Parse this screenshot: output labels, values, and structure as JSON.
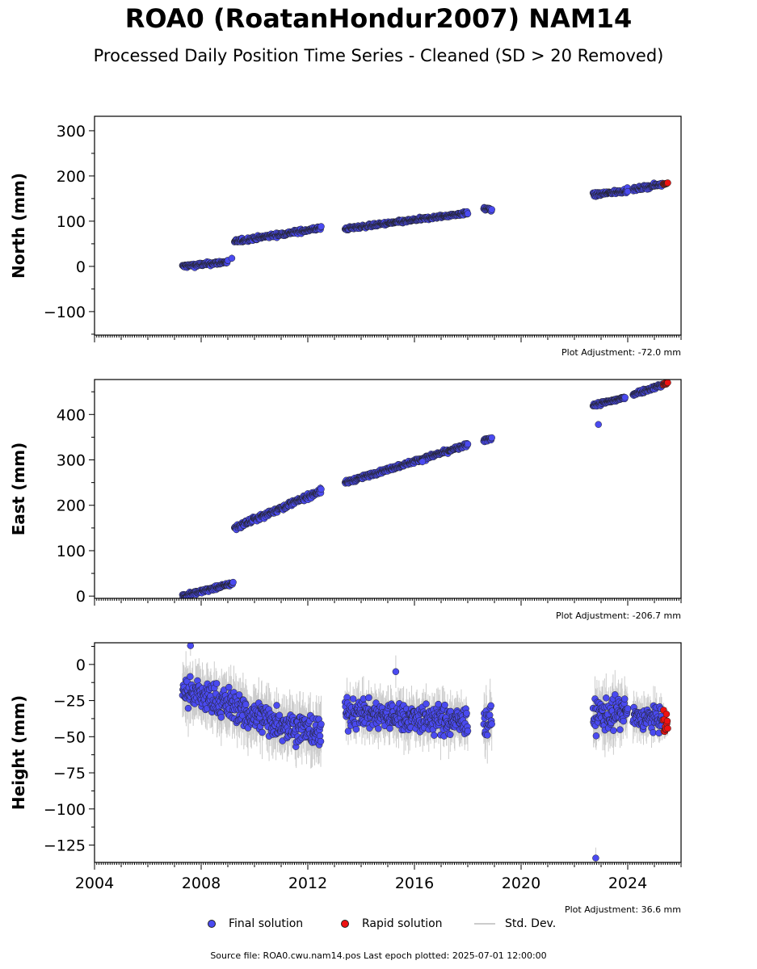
{
  "header": {
    "title": "ROA0 (RoatanHondur2007) NAM14",
    "subtitle": "Processed Daily Position Time Series - Cleaned (SD > 20 Removed)"
  },
  "legend": {
    "final": "Final solution",
    "rapid": "Rapid solution",
    "std": "Std. Dev."
  },
  "footer": {
    "source": "Source file: ROA0.cwu.nam14.pos  Last epoch plotted: 2025-07-01 12:00:00"
  },
  "colors": {
    "final": "#4a4af0",
    "rapid": "#ee1111",
    "std": "#cccccc",
    "edge": "#222222"
  },
  "chart_data": [
    {
      "type": "scatter",
      "ylabel": "North (mm)",
      "xlim": [
        2004.0,
        2026.0
      ],
      "ylim": [
        -152,
        332
      ],
      "yticks": [
        -100,
        0,
        100,
        200,
        300
      ],
      "ytick_labels": [
        "−100",
        "0",
        "100",
        "200",
        "300"
      ],
      "annotation": "Plot Adjustment: -72.0 mm",
      "grid": false,
      "final_segments": [
        {
          "x0": 2007.3,
          "x1": 2009.0,
          "y0": 0,
          "y1": 10,
          "noise": 3
        },
        {
          "x0": 2009.25,
          "x1": 2012.5,
          "y0": 55,
          "y1": 85,
          "noise": 3
        },
        {
          "x0": 2013.4,
          "x1": 2018.0,
          "y0": 83,
          "y1": 118,
          "noise": 2.5
        },
        {
          "x0": 2018.6,
          "x1": 2018.9,
          "y0": 128,
          "y1": 125,
          "noise": 3
        },
        {
          "x0": 2022.7,
          "x1": 2024.0,
          "y0": 158,
          "y1": 168,
          "noise": 3
        },
        {
          "x0": 2024.2,
          "x1": 2025.3,
          "y0": 170,
          "y1": 182,
          "noise": 3
        }
      ],
      "rapid": {
        "x0": 2025.33,
        "x1": 2025.5,
        "y0": 182,
        "y1": 184,
        "noise": 1
      },
      "outliers": [
        {
          "x": 2009.15,
          "y": 18
        }
      ]
    },
    {
      "type": "scatter",
      "ylabel": "East (mm)",
      "xlim": [
        2004.0,
        2026.0
      ],
      "ylim": [
        -5,
        477
      ],
      "yticks": [
        0,
        100,
        200,
        300,
        400
      ],
      "ytick_labels": [
        "0",
        "100",
        "200",
        "300",
        "400"
      ],
      "annotation": "Plot Adjustment: -206.7 mm",
      "grid": false,
      "final_segments": [
        {
          "x0": 2007.3,
          "x1": 2009.2,
          "y0": 0,
          "y1": 28,
          "noise": 3
        },
        {
          "x0": 2009.25,
          "x1": 2012.5,
          "y0": 150,
          "y1": 232,
          "noise": 4
        },
        {
          "x0": 2013.4,
          "x1": 2018.0,
          "y0": 250,
          "y1": 333,
          "noise": 3
        },
        {
          "x0": 2018.6,
          "x1": 2018.9,
          "y0": 343,
          "y1": 348,
          "noise": 3
        },
        {
          "x0": 2022.7,
          "x1": 2023.9,
          "y0": 420,
          "y1": 437,
          "noise": 3
        },
        {
          "x0": 2024.2,
          "x1": 2025.3,
          "y0": 445,
          "y1": 465,
          "noise": 3
        }
      ],
      "rapid": {
        "x0": 2025.33,
        "x1": 2025.5,
        "y0": 466,
        "y1": 470,
        "noise": 1.5
      },
      "outliers": [
        {
          "x": 2022.9,
          "y": 378
        },
        {
          "x": 2016.3,
          "y": 296
        }
      ]
    },
    {
      "type": "scatter",
      "ylabel": "Height (mm)",
      "xlim": [
        2004.0,
        2026.0
      ],
      "ylim": [
        -137,
        15
      ],
      "yticks": [
        -125,
        -100,
        -75,
        -50,
        -25,
        0
      ],
      "ytick_labels": [
        "−125",
        "−100",
        "−75",
        "−50",
        "−25",
        "0"
      ],
      "xticks": [
        2004,
        2008,
        2012,
        2016,
        2020,
        2024
      ],
      "xtick_labels": [
        "2004",
        "2008",
        "2012",
        "2016",
        "2020",
        "2024"
      ],
      "annotation": "Plot Adjustment: 36.6 mm",
      "grid": false,
      "final_segments": [
        {
          "x0": 2007.3,
          "x1": 2009.5,
          "y0": -18,
          "y1": -30,
          "noise": 8
        },
        {
          "x0": 2009.5,
          "x1": 2012.5,
          "y0": -33,
          "y1": -48,
          "noise": 8
        },
        {
          "x0": 2013.4,
          "x1": 2018.0,
          "y0": -33,
          "y1": -40,
          "noise": 7
        },
        {
          "x0": 2018.6,
          "x1": 2018.9,
          "y0": -40,
          "y1": -40,
          "noise": 8
        },
        {
          "x0": 2022.7,
          "x1": 2024.0,
          "y0": -35,
          "y1": -33,
          "noise": 8
        },
        {
          "x0": 2024.2,
          "x1": 2025.3,
          "y0": -37,
          "y1": -38,
          "noise": 6
        }
      ],
      "rapid": {
        "x0": 2025.33,
        "x1": 2025.5,
        "y0": -42,
        "y1": -42,
        "noise": 5
      },
      "outliers": [
        {
          "x": 2022.8,
          "y": -134
        },
        {
          "x": 2007.6,
          "y": 13
        },
        {
          "x": 2015.3,
          "y": -5
        }
      ]
    }
  ]
}
